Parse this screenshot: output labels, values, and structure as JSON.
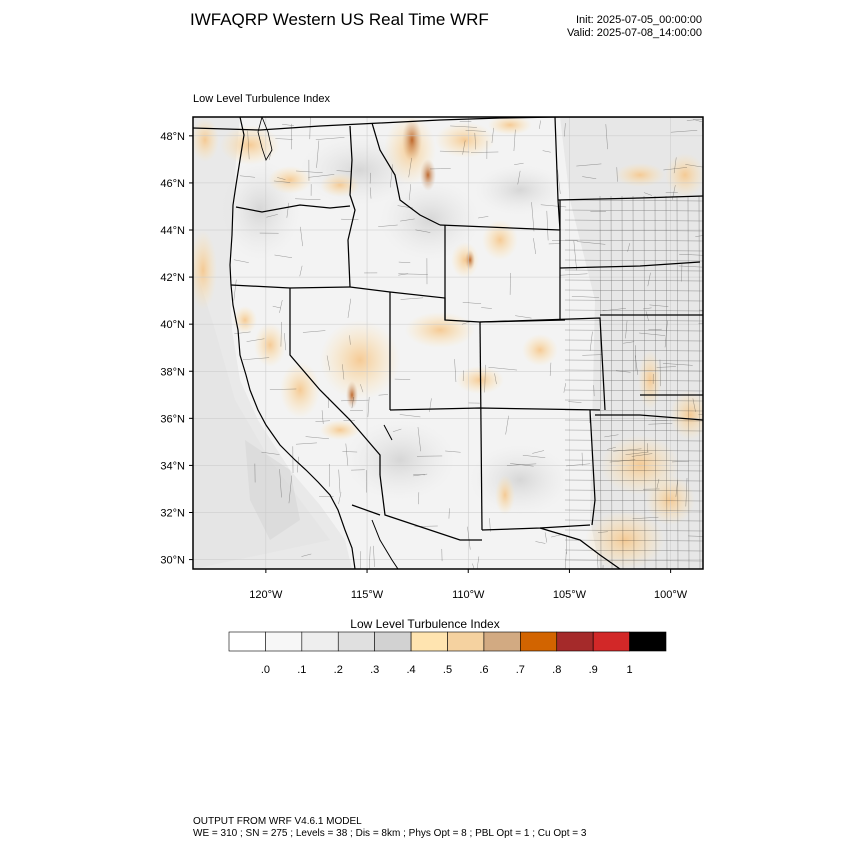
{
  "header": {
    "title": "IWFAQRP Western US Real Time WRF",
    "init": "Init: 2025-07-05_00:00:00",
    "valid": "Valid: 2025-07-08_14:00:00"
  },
  "map": {
    "subtitle": "Low Level Turbulence Index",
    "lat_labels": [
      "48°N",
      "46°N",
      "44°N",
      "42°N",
      "40°N",
      "38°N",
      "36°N",
      "34°N",
      "32°N",
      "30°N"
    ],
    "lat_values": [
      48,
      46,
      44,
      42,
      40,
      38,
      36,
      34,
      32,
      30
    ],
    "lon_labels": [
      "120°W",
      "115°W",
      "110°W",
      "105°W",
      "100°W"
    ],
    "lon_values": [
      -120,
      -115,
      -110,
      -105,
      -100
    ],
    "lon_range": [
      -123.6,
      -98.4
    ],
    "lat_range": [
      29.6,
      48.8
    ]
  },
  "colorbar": {
    "title": "Low Level Turbulence Index",
    "tick_labels": [
      ".0",
      ".1",
      ".2",
      ".3",
      ".4",
      ".5",
      ".6",
      ".7",
      ".8",
      ".9",
      "1"
    ],
    "colors": [
      "#ffffff",
      "#f7f7f7",
      "#eeeeee",
      "#e0e0e0",
      "#d2d2d2",
      "#ffe4b0",
      "#f5d2a0",
      "#d2aa82",
      "#d26400",
      "#a52a2a",
      "#d22828",
      "#000000"
    ]
  },
  "footer": {
    "line1": "OUTPUT FROM WRF V4.6.1 MODEL",
    "line2": "WE = 310 ; SN = 275 ; Levels = 38 ; Dis = 8km ; Phys Opt = 8 ; PBL Opt = 1 ; Cu Opt = 3"
  }
}
